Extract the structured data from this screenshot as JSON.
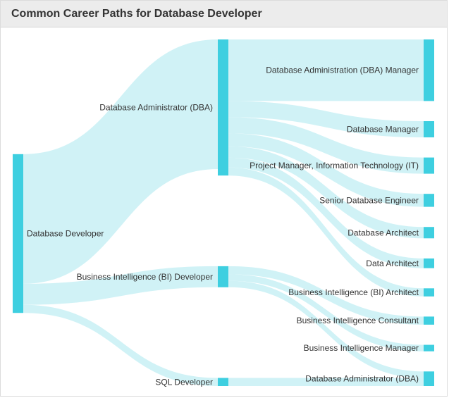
{
  "header": {
    "title": "Common Career Paths for Database Developer"
  },
  "colors": {
    "node": "#3ecfe0",
    "link": "#cdf1f6",
    "link_highlight": "#b4eaf1",
    "header_bg": "#ececec",
    "text": "#333333"
  },
  "chart_data": {
    "type": "sankey",
    "title": "Common Career Paths for Database Developer",
    "columns": [
      [
        "Database Developer"
      ],
      [
        "Database Administrator (DBA)",
        "Business Intelligence (BI) Developer",
        "SQL Developer"
      ],
      [
        "Database Administration (DBA) Manager",
        "Database Manager",
        "Project Manager, Information Technology (IT)",
        "Senior Database Engineer",
        "Database Architect",
        "Data Architect",
        "Business Intelligence (BI) Architect",
        "Business Intelligence Consultant",
        "Business Intelligence Manager",
        "Database Administrator (DBA)"
      ]
    ],
    "links": [
      {
        "source": "Database Developer",
        "target": "Database Administrator (DBA)",
        "value": 8
      },
      {
        "source": "Database Developer",
        "target": "Business Intelligence (BI) Developer",
        "value": 1.3
      },
      {
        "source": "Database Developer",
        "target": "SQL Developer",
        "value": 0.5
      },
      {
        "source": "Database Administrator (DBA)",
        "target": "Database Administration (DBA) Manager",
        "value": 3.8
      },
      {
        "source": "Database Administrator (DBA)",
        "target": "Database Manager",
        "value": 1
      },
      {
        "source": "Database Administrator (DBA)",
        "target": "Project Manager, Information Technology (IT)",
        "value": 1
      },
      {
        "source": "Database Administrator (DBA)",
        "target": "Senior Database Engineer",
        "value": 0.8
      },
      {
        "source": "Database Administrator (DBA)",
        "target": "Database Architect",
        "value": 0.7
      },
      {
        "source": "Database Administrator (DBA)",
        "target": "Data Architect",
        "value": 0.6
      },
      {
        "source": "Database Administrator (DBA)",
        "target": "Business Intelligence (BI) Architect",
        "value": 0.5
      },
      {
        "source": "Business Intelligence (BI) Developer",
        "target": "Business Intelligence Consultant",
        "value": 0.5
      },
      {
        "source": "Business Intelligence (BI) Developer",
        "target": "Business Intelligence Manager",
        "value": 0.4
      },
      {
        "source": "Business Intelligence (BI) Developer",
        "target": "Database Administrator (DBA)",
        "value": 0.4
      },
      {
        "source": "SQL Developer",
        "target": "Database Administrator (DBA)",
        "value": 0.5
      }
    ]
  }
}
